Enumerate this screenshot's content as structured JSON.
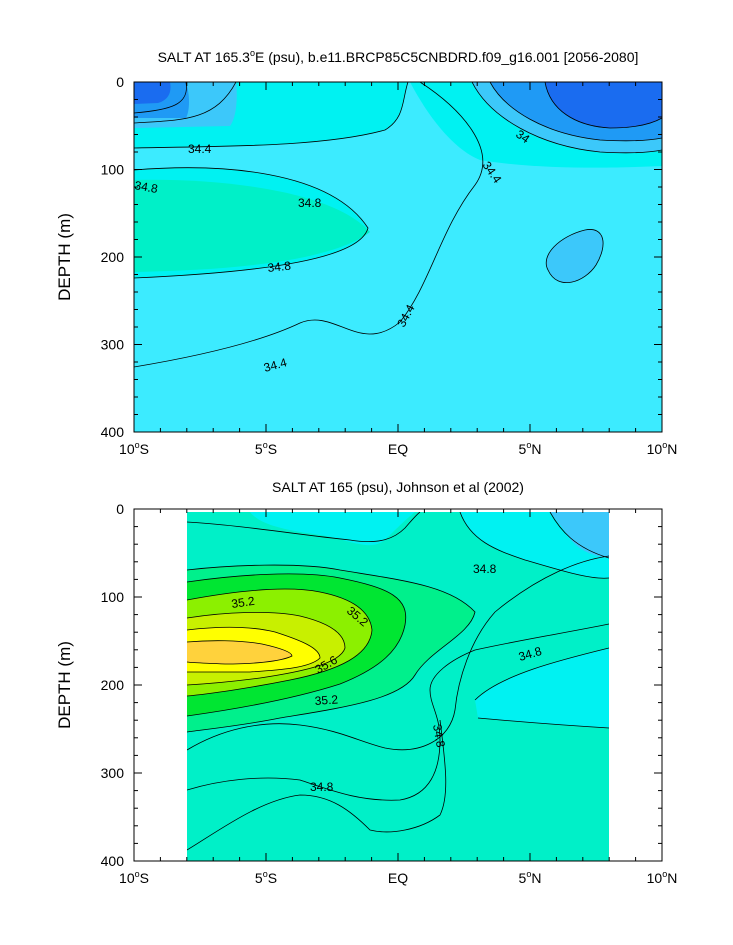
{
  "chart_data": [
    {
      "type": "contour",
      "title": "SALT AT 165.3",
      "title_deg": "o",
      "title_rest": "E (psu), b.e11.BRCP85C5CNBDRD.f09_g16.001 [2056-2080]",
      "ylabel": "DEPTH (m)",
      "xlim": [
        -10,
        10
      ],
      "ylim": [
        400,
        0
      ],
      "x_ticks": [
        {
          "value": -10,
          "num": "10",
          "deg": "o",
          "hem": "S"
        },
        {
          "value": -5,
          "num": "5",
          "deg": "o",
          "hem": "S"
        },
        {
          "value": 0,
          "num": "EQ",
          "deg": "",
          "hem": ""
        },
        {
          "value": 5,
          "num": "5",
          "deg": "o",
          "hem": "N"
        },
        {
          "value": 10,
          "num": "10",
          "deg": "o",
          "hem": "N"
        }
      ],
      "y_ticks": [
        "0",
        "100",
        "200",
        "300",
        "400"
      ],
      "contour_labels": [
        "34.4",
        "34.8",
        "34.8",
        "34.8",
        "34.4",
        "34.4",
        "34.4",
        "34"
      ],
      "colors": {
        "deep_blue": "#1a6cf0",
        "blue": "#1f9af5",
        "sky": "#3cc8fa",
        "light_cyan": "#00f2f2",
        "cyan": "#26e8ff",
        "aqua_green": "#00f0c8"
      }
    },
    {
      "type": "contour",
      "title": "SALT AT 165 (psu), Johnson et al (2002)",
      "ylabel": "DEPTH (m)",
      "xlim": [
        -10,
        10
      ],
      "ylim": [
        400,
        0
      ],
      "data_xrange": [
        -8,
        8
      ],
      "x_ticks": [
        {
          "value": -10,
          "num": "10",
          "deg": "o",
          "hem": "S"
        },
        {
          "value": -5,
          "num": "5",
          "deg": "o",
          "hem": "S"
        },
        {
          "value": 0,
          "num": "EQ",
          "deg": "",
          "hem": ""
        },
        {
          "value": 5,
          "num": "5",
          "deg": "o",
          "hem": "N"
        },
        {
          "value": 10,
          "num": "10",
          "deg": "o",
          "hem": "N"
        }
      ],
      "y_ticks": [
        "0",
        "100",
        "200",
        "300",
        "400"
      ],
      "contour_labels": [
        "35.2",
        "35.2",
        "35.6",
        "35.2",
        "34.8",
        "34.8",
        "34.8",
        "34.8"
      ],
      "colors": {
        "yellow": "#ffff00",
        "gold": "#ffd23c",
        "yellow_green": "#c8f000",
        "lime": "#8cf000",
        "green": "#00e632",
        "mint": "#00f08c",
        "aqua_green": "#00f0c8",
        "light_cyan": "#00f2f2",
        "sky": "#3cc8fa",
        "cyan": "#26e8ff"
      }
    }
  ]
}
